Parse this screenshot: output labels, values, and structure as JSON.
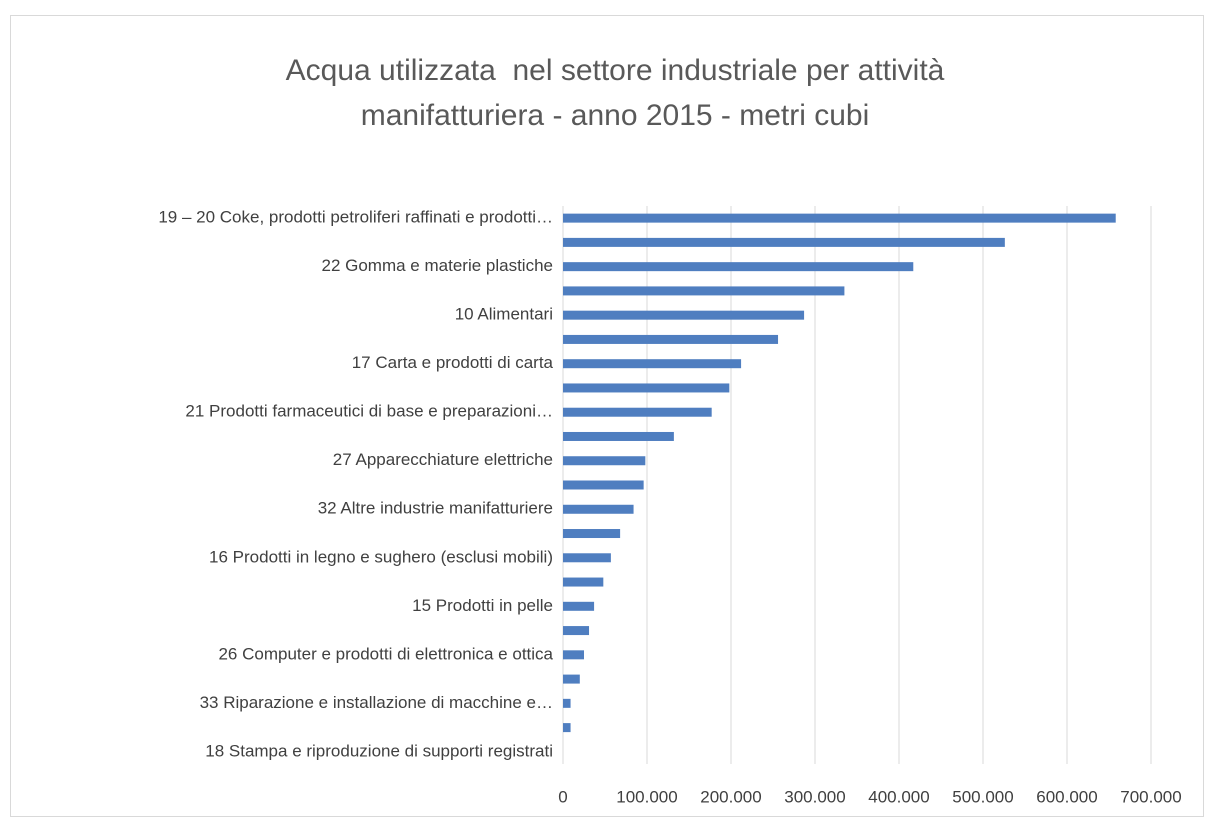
{
  "chart_data": {
    "type": "barh",
    "title": "Acqua utilizzata  nel settore industriale per attività manifatturiera - anno 2015 - metri cubi",
    "categories": [
      "19 – 20 Coke, prodotti petroliferi raffinati e prodotti…",
      null,
      "22 Gomma e materie plastiche",
      null,
      "10 Alimentari",
      null,
      "17 Carta e prodotti di carta",
      null,
      "21 Prodotti farmaceutici di base e preparazioni…",
      null,
      "27 Apparecchiature elettriche",
      null,
      "32 Altre industrie manifatturiere",
      null,
      "16 Prodotti in legno e sughero (esclusi mobili)",
      null,
      "15 Prodotti in pelle",
      null,
      "26 Computer e prodotti di elettronica e ottica",
      null,
      "33 Riparazione e installazione di macchine e…",
      null,
      "18 Stampa e riproduzione di supporti registrati"
    ],
    "values": [
      658000,
      526000,
      417000,
      335000,
      287000,
      256000,
      212000,
      198000,
      177000,
      132000,
      98000,
      96000,
      84000,
      68000,
      57000,
      48000,
      37000,
      31000,
      25000,
      20000,
      9000,
      9000,
      0
    ],
    "color": "#4f7ec0",
    "xlim": [
      0,
      700000
    ],
    "xticks": [
      0,
      {
        "value": 100000,
        "label": "100.000"
      },
      {
        "value": 200000,
        "label": "200.000"
      },
      {
        "value": 300000,
        "label": "300.000"
      },
      {
        "value": 400000,
        "label": "400.000"
      },
      {
        "value": 500000,
        "label": "500.000"
      },
      {
        "value": 600000,
        "label": "600.000"
      },
      {
        "value": 700000,
        "label": "700.000"
      }
    ],
    "grid": true
  }
}
